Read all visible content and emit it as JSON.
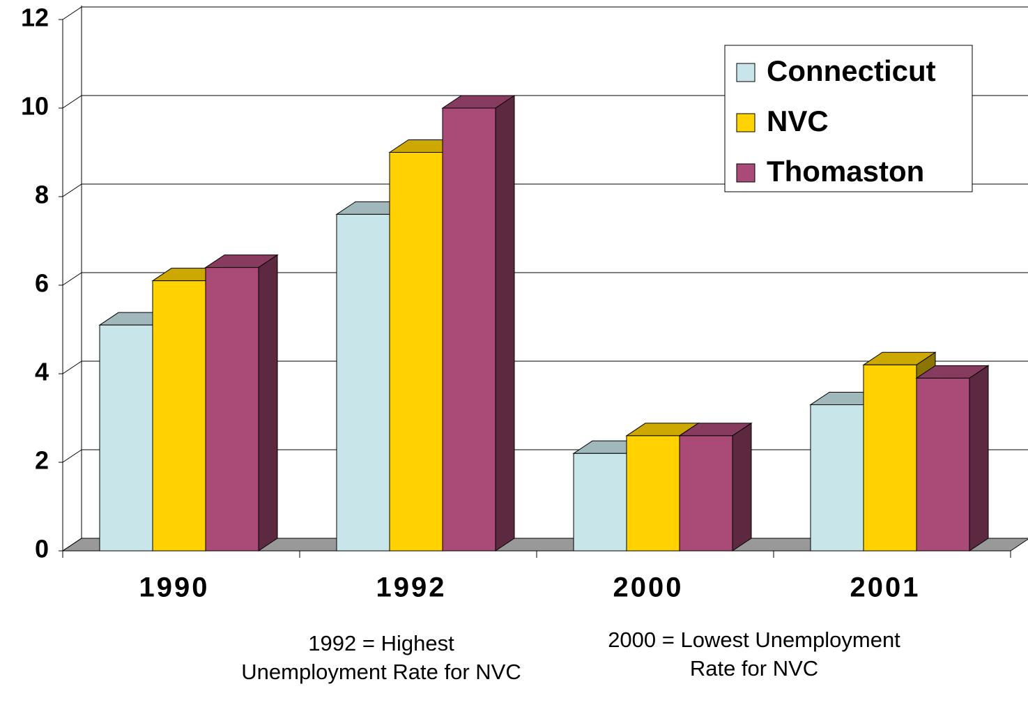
{
  "chart_data": {
    "type": "bar",
    "categories": [
      "1990",
      "1992",
      "2000",
      "2001"
    ],
    "series": [
      {
        "name": "Connecticut",
        "color": "#c8e6ea",
        "values": [
          5.1,
          7.6,
          2.2,
          3.3
        ]
      },
      {
        "name": "NVC",
        "color": "#ffd200",
        "values": [
          6.1,
          9.0,
          2.6,
          4.2
        ]
      },
      {
        "name": "Thomaston",
        "color": "#a94a77",
        "values": [
          6.4,
          10.0,
          2.6,
          3.9
        ]
      }
    ],
    "ylim": [
      0,
      12
    ],
    "yticks": [
      0,
      2,
      4,
      6,
      8,
      10,
      12
    ],
    "grid": true,
    "legend": "top-right",
    "annotations": [
      "1992 = Highest Unemployment Rate for NVC",
      "2000 = Lowest Unemployment Rate for NVC"
    ]
  }
}
